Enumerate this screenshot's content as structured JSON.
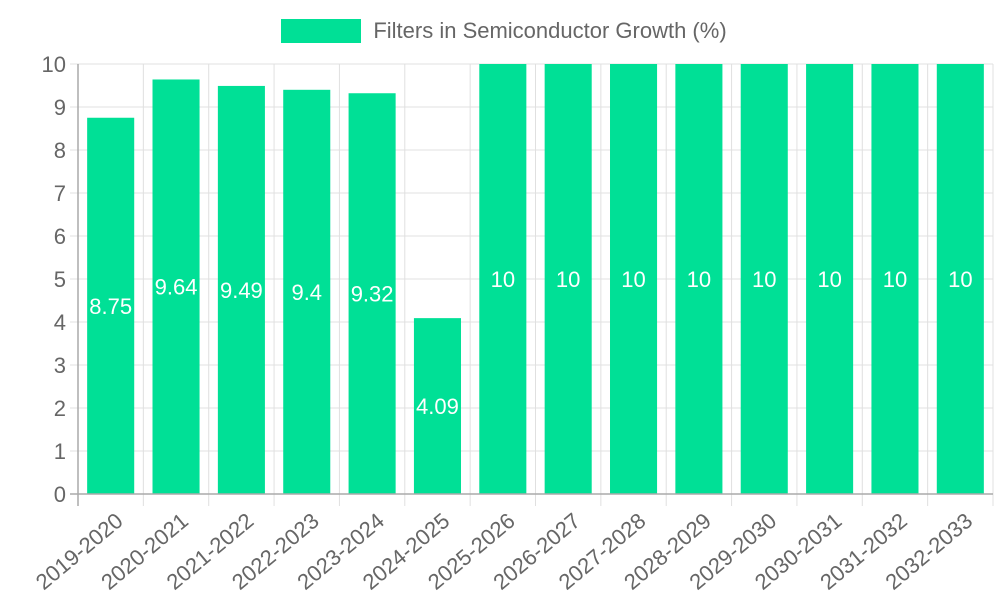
{
  "legend": {
    "label": "Filters in Semiconductor Growth (%)",
    "color": "#00e096"
  },
  "chart_data": {
    "type": "bar",
    "title": "",
    "xlabel": "",
    "ylabel": "",
    "ylim": [
      0,
      10
    ],
    "yticks": [
      0,
      1,
      2,
      3,
      4,
      5,
      6,
      7,
      8,
      9,
      10
    ],
    "grid": true,
    "legend_position": "top",
    "categories": [
      "2019-2020",
      "2020-2021",
      "2021-2022",
      "2022-2023",
      "2023-2024",
      "2024-2025",
      "2025-2026",
      "2026-2027",
      "2027-2028",
      "2028-2029",
      "2029-2030",
      "2030-2031",
      "2031-2032",
      "2032-2033"
    ],
    "series": [
      {
        "name": "Filters in Semiconductor Growth (%)",
        "color": "#00e096",
        "values": [
          8.75,
          9.64,
          9.49,
          9.4,
          9.32,
          4.09,
          10,
          10,
          10,
          10,
          10,
          10,
          10,
          10
        ]
      }
    ],
    "data_labels": [
      "8.75",
      "9.64",
      "9.49",
      "9.4",
      "9.32",
      "4.09",
      "10",
      "10",
      "10",
      "10",
      "10",
      "10",
      "10",
      "10"
    ]
  }
}
